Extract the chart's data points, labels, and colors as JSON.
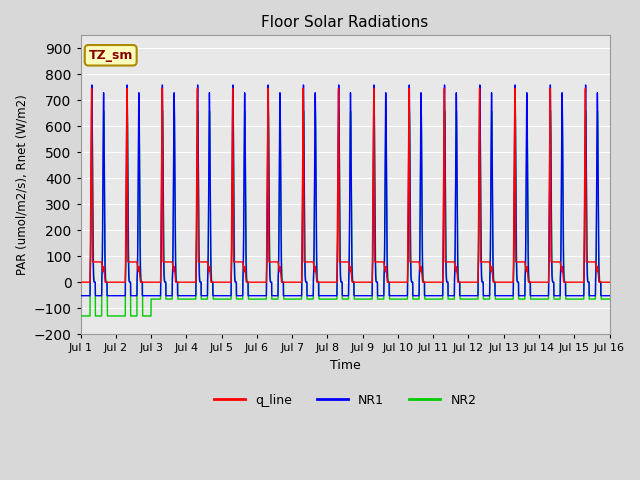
{
  "title": "Floor Solar Radiations",
  "xlabel": "Time",
  "ylabel": "PAR (umol/m2/s), Rnet (W/m2)",
  "ylim": [
    -200,
    950
  ],
  "yticks": [
    -200,
    -100,
    0,
    100,
    200,
    300,
    400,
    500,
    600,
    700,
    800,
    900
  ],
  "xtick_labels": [
    "Jul 1",
    "Jul 2",
    "Jul 3",
    "Jul 4",
    "Jul 5",
    "Jul 6",
    "Jul 7",
    "Jul 8",
    "Jul 9",
    "Jul 10",
    "Jul 11",
    "Jul 12",
    "Jul 13",
    "Jul 14",
    "Jul 15",
    "Jul 16"
  ],
  "n_days": 15,
  "points_per_day": 288,
  "colors": {
    "q_line": "#ff0000",
    "NR1": "#0000ff",
    "NR2": "#00cc00",
    "background": "#e8e8e8",
    "grid": "#ffffff"
  },
  "legend_label": "TZ_sm",
  "line_width": 1.0,
  "q_line_day_peak": 770,
  "q_line_plateau": 78,
  "NR1_spike1_peak": 760,
  "NR1_spike2_peak": 730,
  "NR1_night_val": -52,
  "NR2_spike1_peak": 660,
  "NR2_spike2_peak": 660,
  "NR2_night_val": -65,
  "NR2_first_two_days_dip": -130
}
